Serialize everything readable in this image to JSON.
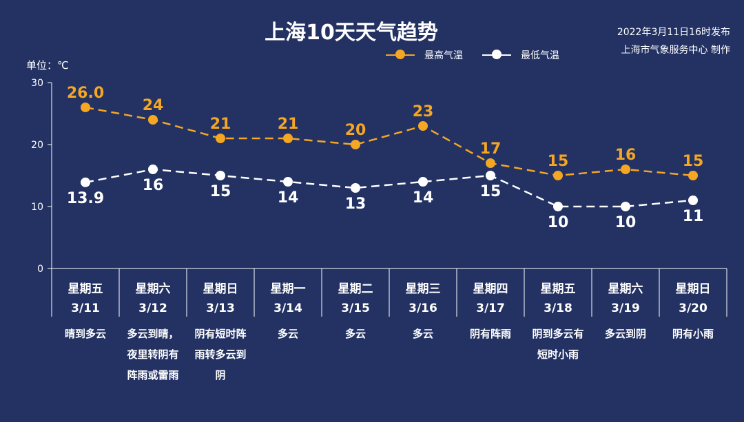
{
  "title": "上海10天天气趋势",
  "publisher": {
    "line1": "2022年3月11日16时发布",
    "line2": "上海市气象服务中心 制作"
  },
  "unit_label": "单位：℃",
  "legend": {
    "high_label": "最高气温",
    "low_label": "最低气温"
  },
  "colors": {
    "background": "#233263",
    "high": "#f5a623",
    "low": "#ffffff",
    "axis": "#ffffff"
  },
  "chart_data": {
    "type": "line",
    "title": "上海10天天气趋势",
    "ylabel": "单位：℃",
    "ylim": [
      0,
      30
    ],
    "yticks": [
      0,
      10,
      20,
      30
    ],
    "grid": false,
    "legend_position": "top-right",
    "categories": [
      "3/11",
      "3/12",
      "3/13",
      "3/14",
      "3/15",
      "3/16",
      "3/17",
      "3/18",
      "3/19",
      "3/20"
    ],
    "series": [
      {
        "name": "最高气温",
        "values": [
          26.0,
          24,
          21,
          21,
          20,
          23,
          17,
          15,
          16,
          15
        ],
        "labels": [
          "26.0",
          "24",
          "21",
          "21",
          "20",
          "23",
          "17",
          "15",
          "16",
          "15"
        ]
      },
      {
        "name": "最低气温",
        "values": [
          13.9,
          16,
          15,
          14,
          13,
          14,
          15,
          10,
          10,
          11
        ],
        "labels": [
          "13.9",
          "16",
          "15",
          "14",
          "13",
          "14",
          "15",
          "10",
          "10",
          "11"
        ]
      }
    ]
  },
  "days": [
    {
      "week": "星期五",
      "date": "3/11",
      "weather": [
        "晴到多云"
      ]
    },
    {
      "week": "星期六",
      "date": "3/12",
      "weather": [
        "多云到晴，",
        "夜里转阴有",
        "阵雨或雷雨"
      ]
    },
    {
      "week": "星期日",
      "date": "3/13",
      "weather": [
        "阴有短时阵",
        "雨转多云到",
        "阴"
      ]
    },
    {
      "week": "星期一",
      "date": "3/14",
      "weather": [
        "多云"
      ]
    },
    {
      "week": "星期二",
      "date": "3/15",
      "weather": [
        "多云"
      ]
    },
    {
      "week": "星期三",
      "date": "3/16",
      "weather": [
        "多云"
      ]
    },
    {
      "week": "星期四",
      "date": "3/17",
      "weather": [
        "阴有阵雨"
      ]
    },
    {
      "week": "星期五",
      "date": "3/18",
      "weather": [
        "阴到多云有",
        "短时小雨"
      ]
    },
    {
      "week": "星期六",
      "date": "3/19",
      "weather": [
        "多云到阴"
      ]
    },
    {
      "week": "星期日",
      "date": "3/20",
      "weather": [
        "阴有小雨"
      ]
    }
  ]
}
